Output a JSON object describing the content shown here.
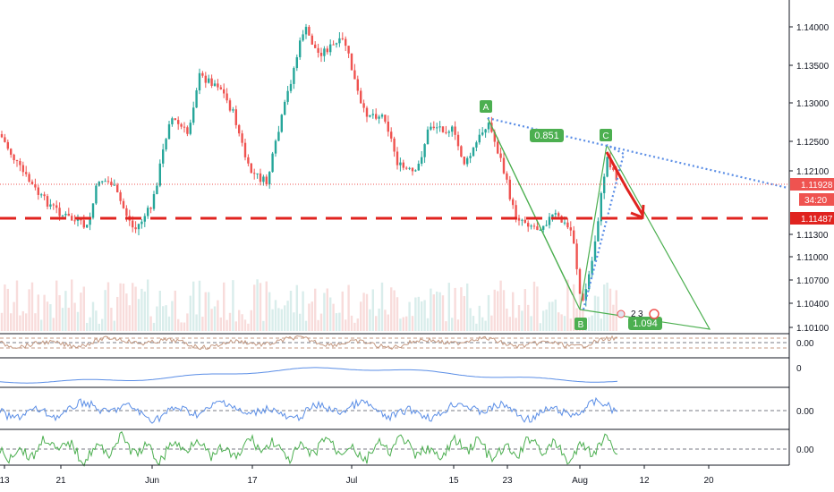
{
  "chart_data": {
    "type": "candlestick",
    "price_axis_ticks": [
      "1.14000",
      "1.13500",
      "1.13000",
      "1.12500",
      "1.12100",
      "1.11300",
      "1.11000",
      "1.10700",
      "1.10400",
      "1.10100"
    ],
    "date_axis_ticks": [
      "13",
      "21",
      "Jun",
      "17",
      "Jul",
      "15",
      "23",
      "Aug",
      "12",
      "20"
    ],
    "current_price": "1.11928",
    "countdown": "34:20",
    "dashed_level": "1.11487",
    "pattern_points": [
      "A",
      "B",
      "C"
    ],
    "ratios": [
      "0.851",
      "1.094"
    ],
    "event_marks": [
      "2",
      "3"
    ],
    "indicator_zero_labels": [
      "0.00",
      "0",
      "0.00",
      "0.00"
    ],
    "colors": {
      "bull": "#26a69a",
      "bear": "#ef5350",
      "pattern": "#4caf50",
      "dotted_line": "#5b8ee6",
      "dashed_level": "#e0231f",
      "arrow": "#e0231f",
      "osc1": "#c49a83",
      "osc2": "#5b8ee6",
      "osc3": "#5b8ee6",
      "osc4": "#4caf50"
    }
  }
}
